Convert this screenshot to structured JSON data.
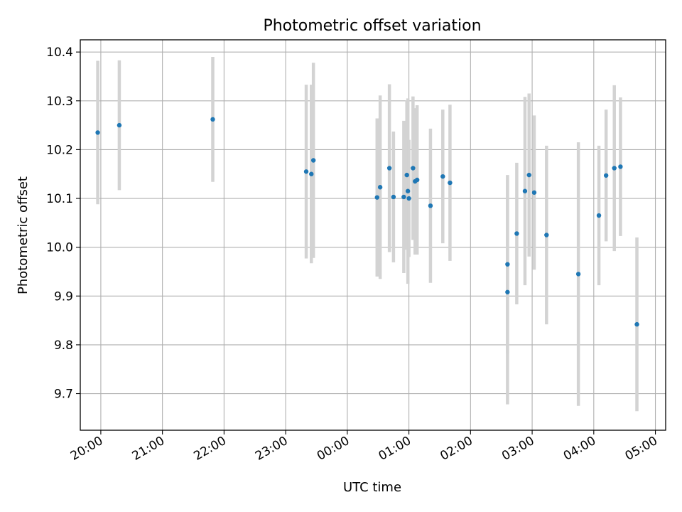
{
  "chart_data": {
    "type": "scatter",
    "title": "Photometric offset variation",
    "xlabel": "UTC time",
    "ylabel": "Photometric offset",
    "x_unit": "UTC time",
    "y_ticks": [
      "9.7",
      "9.8",
      "9.9",
      "10.0",
      "10.1",
      "10.2",
      "10.3",
      "10.4"
    ],
    "x_ticks": [
      "20:00",
      "21:00",
      "22:00",
      "23:00",
      "00:00",
      "01:00",
      "02:00",
      "03:00",
      "04:00",
      "05:00"
    ],
    "xlim": [
      "19:40",
      "05:10"
    ],
    "ylim": [
      9.625,
      10.425
    ],
    "grid": true,
    "errorbar_color": "#d3d3d3",
    "point_color": "#1f77b4",
    "points": [
      {
        "x": "19:57",
        "y": 10.235,
        "err": 0.147
      },
      {
        "x": "20:18",
        "y": 10.25,
        "err": 0.133
      },
      {
        "x": "21:49",
        "y": 10.262,
        "err": 0.128
      },
      {
        "x": "23:20",
        "y": 10.155,
        "err": 0.178
      },
      {
        "x": "23:25",
        "y": 10.15,
        "err": 0.183
      },
      {
        "x": "23:27",
        "y": 10.178,
        "err": 0.2
      },
      {
        "x": "00:29",
        "y": 10.102,
        "err": 0.162
      },
      {
        "x": "00:32",
        "y": 10.123,
        "err": 0.188
      },
      {
        "x": "00:41",
        "y": 10.162,
        "err": 0.172
      },
      {
        "x": "00:45",
        "y": 10.103,
        "err": 0.134
      },
      {
        "x": "00:55",
        "y": 10.103,
        "err": 0.156
      },
      {
        "x": "00:58",
        "y": 10.148,
        "err": 0.153
      },
      {
        "x": "00:59",
        "y": 10.115,
        "err": 0.19
      },
      {
        "x": "01:00",
        "y": 10.1,
        "err": 0.12
      },
      {
        "x": "01:04",
        "y": 10.162,
        "err": 0.147
      },
      {
        "x": "01:06",
        "y": 10.135,
        "err": 0.15
      },
      {
        "x": "01:08",
        "y": 10.138,
        "err": 0.153
      },
      {
        "x": "01:21",
        "y": 10.085,
        "err": 0.158
      },
      {
        "x": "01:33",
        "y": 10.145,
        "err": 0.137
      },
      {
        "x": "01:40",
        "y": 10.132,
        "err": 0.16
      },
      {
        "x": "02:36",
        "y": 9.965,
        "err": 0.183
      },
      {
        "x": "02:36",
        "y": 9.908,
        "err": 0.23
      },
      {
        "x": "02:45",
        "y": 10.028,
        "err": 0.145
      },
      {
        "x": "02:53",
        "y": 10.115,
        "err": 0.193
      },
      {
        "x": "02:57",
        "y": 10.148,
        "err": 0.167
      },
      {
        "x": "03:02",
        "y": 10.112,
        "err": 0.158
      },
      {
        "x": "03:14",
        "y": 10.025,
        "err": 0.183
      },
      {
        "x": "03:45",
        "y": 9.945,
        "err": 0.27
      },
      {
        "x": "04:05",
        "y": 10.065,
        "err": 0.143
      },
      {
        "x": "04:12",
        "y": 10.147,
        "err": 0.135
      },
      {
        "x": "04:20",
        "y": 10.162,
        "err": 0.17
      },
      {
        "x": "04:26",
        "y": 10.165,
        "err": 0.142
      },
      {
        "x": "04:42",
        "y": 9.842,
        "err": 0.178
      }
    ]
  }
}
